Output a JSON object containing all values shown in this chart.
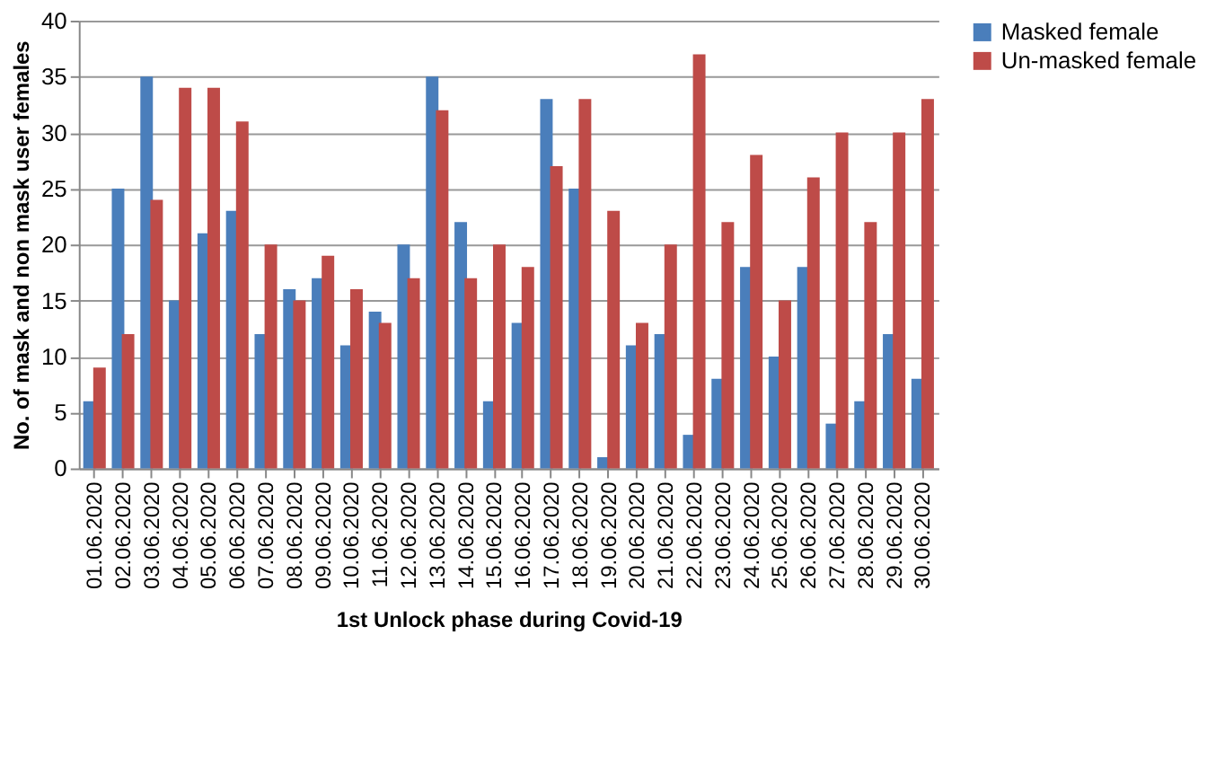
{
  "chart_data": {
    "type": "bar",
    "xlabel": "1st Unlock  phase during Covid-19",
    "ylabel": "No. of mask and non mask user females",
    "categories": [
      "01.06.2020",
      "02.06.2020",
      "03.06.2020",
      "04.06.2020",
      "05.06.2020",
      "06.06.2020",
      "07.06.2020",
      "08.06.2020",
      "09.06.2020",
      "10.06.2020",
      "11.06.2020",
      "12.06.2020",
      "13.06.2020",
      "14.06.2020",
      "15.06.2020",
      "16.06.2020",
      "17.06.2020",
      "18.06.2020",
      "19.06.2020",
      "20.06.2020",
      "21.06.2020",
      "22.06.2020",
      "23.06.2020",
      "24.06.2020",
      "25.06.2020",
      "26.06.2020",
      "27.06.2020",
      "28.06.2020",
      "29.06.2020",
      "30.06.2020"
    ],
    "series": [
      {
        "name": "Masked female",
        "color": "#4a7ebb",
        "values": [
          6,
          25,
          35,
          15,
          21,
          23,
          12,
          16,
          17,
          11,
          14,
          20,
          35,
          22,
          6,
          13,
          33,
          25,
          1,
          11,
          12,
          3,
          8,
          18,
          10,
          18,
          4,
          6,
          12,
          8
        ]
      },
      {
        "name": "Un-masked female",
        "color": "#be4b48",
        "values": [
          9,
          12,
          24,
          34,
          34,
          31,
          20,
          15,
          19,
          16,
          13,
          17,
          32,
          17,
          20,
          18,
          27,
          33,
          23,
          13,
          20,
          37,
          22,
          28,
          15,
          26,
          30,
          22,
          30,
          33
        ]
      }
    ],
    "ylim": [
      0,
      40
    ],
    "yticks": [
      0,
      5,
      10,
      15,
      20,
      25,
      30,
      35,
      40
    ],
    "grid": "y",
    "legend": "right"
  }
}
